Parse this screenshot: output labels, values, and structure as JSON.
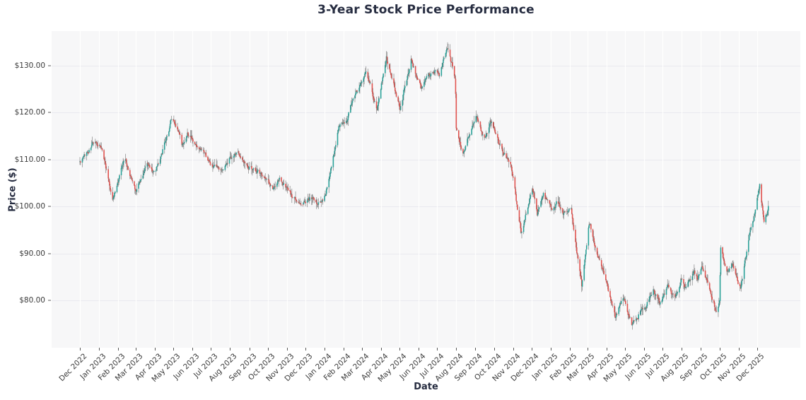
{
  "title": "3-Year Stock Price Performance",
  "chart_data": {
    "type": "candlestick",
    "title": "3-Year Stock Price Performance",
    "xlabel": "Date",
    "ylabel": "Price ($)",
    "ylim": [
      69.9,
      137.4
    ],
    "grid": true,
    "start_date": "2022-12-01",
    "end_date": "2025-12-19",
    "frequency": "daily-business-days",
    "up_color": "#2aa198",
    "down_color": "#e0524e",
    "wick_color": "#4a4a4a",
    "plot_bg": "#f7f7f8",
    "y_ticks": [
      {
        "price": 130,
        "label": "$130.00"
      },
      {
        "price": 120,
        "label": "$120.00"
      },
      {
        "price": 110,
        "label": "$110.00"
      },
      {
        "price": 100,
        "label": "$100.00"
      },
      {
        "price": 90,
        "label": "$90.00"
      },
      {
        "price": 80,
        "label": "$80.00"
      }
    ],
    "x_ticks": [
      "Dec 2022",
      "Jan 2023",
      "Feb 2023",
      "Mar 2023",
      "Apr 2023",
      "May 2023",
      "Jun 2023",
      "Jul 2023",
      "Aug 2023",
      "Sep 2023",
      "Oct 2023",
      "Nov 2023",
      "Dec 2023",
      "Jan 2024",
      "Feb 2024",
      "Mar 2024",
      "Apr 2024",
      "May 2024",
      "Jun 2024",
      "Jul 2024",
      "Aug 2024",
      "Sep 2024",
      "Oct 2024",
      "Nov 2024",
      "Dec 2024",
      "Jan 2025",
      "Feb 2025",
      "Mar 2025",
      "Apr 2025",
      "May 2025",
      "Jun 2025",
      "Jul 2025",
      "Aug 2025",
      "Sep 2025",
      "Oct 2025",
      "Nov 2025",
      "Dec 2025"
    ],
    "price_max_observed": 134.5,
    "price_min_observed": 73.5,
    "trend_anchors": [
      [
        "2022-12-01",
        109.5
      ],
      [
        "2022-12-09",
        110.5
      ],
      [
        "2022-12-22",
        113.6
      ],
      [
        "2023-01-03",
        112.6
      ],
      [
        "2023-01-12",
        108.5
      ],
      [
        "2023-01-23",
        102.2
      ],
      [
        "2023-02-12",
        109.6
      ],
      [
        "2023-03-01",
        103.6
      ],
      [
        "2023-03-20",
        109.4
      ],
      [
        "2023-04-01",
        107.2
      ],
      [
        "2023-04-14",
        112.2
      ],
      [
        "2023-04-28",
        118.2
      ],
      [
        "2023-05-08",
        117.0
      ],
      [
        "2023-05-15",
        113.2
      ],
      [
        "2023-05-24",
        116.4
      ],
      [
        "2023-06-12",
        111.6
      ],
      [
        "2023-07-03",
        108.3
      ],
      [
        "2023-07-17",
        106.6
      ],
      [
        "2023-08-01",
        110.2
      ],
      [
        "2023-08-14",
        111.4
      ],
      [
        "2023-09-01",
        109.2
      ],
      [
        "2023-09-25",
        106.6
      ],
      [
        "2023-10-10",
        103.6
      ],
      [
        "2023-10-20",
        105.4
      ],
      [
        "2023-11-10",
        101.8
      ],
      [
        "2023-11-24",
        100.4
      ],
      [
        "2023-12-08",
        101.6
      ],
      [
        "2023-12-29",
        100.9
      ],
      [
        "2024-01-12",
        108.0
      ],
      [
        "2024-01-24",
        117.6
      ],
      [
        "2024-02-06",
        118.4
      ],
      [
        "2024-02-27",
        126.6
      ],
      [
        "2024-03-08",
        129.6
      ],
      [
        "2024-03-26",
        120.6
      ],
      [
        "2024-04-10",
        131.9
      ],
      [
        "2024-05-02",
        121.6
      ],
      [
        "2024-05-20",
        131.4
      ],
      [
        "2024-06-06",
        125.0
      ],
      [
        "2024-06-24",
        129.0
      ],
      [
        "2024-07-05",
        127.5
      ],
      [
        "2024-07-18",
        133.6
      ],
      [
        "2024-07-30",
        127.2
      ],
      [
        "2024-07-31",
        124.0
      ],
      [
        "2024-08-01",
        116.5
      ],
      [
        "2024-08-12",
        111.8
      ],
      [
        "2024-08-26",
        117.3
      ],
      [
        "2024-09-03",
        119.2
      ],
      [
        "2024-09-16",
        114.3
      ],
      [
        "2024-09-25",
        118.0
      ],
      [
        "2024-10-01",
        116.6
      ],
      [
        "2024-10-14",
        111.8
      ],
      [
        "2024-10-28",
        108.2
      ],
      [
        "2024-11-14",
        95.2
      ],
      [
        "2024-12-02",
        104.3
      ],
      [
        "2024-12-10",
        97.9
      ],
      [
        "2024-12-20",
        102.0
      ],
      [
        "2025-01-02",
        99.2
      ],
      [
        "2025-01-10",
        101.4
      ],
      [
        "2025-01-21",
        98.6
      ],
      [
        "2025-02-03",
        100.4
      ],
      [
        "2025-02-11",
        92.0
      ],
      [
        "2025-02-20",
        83.2
      ],
      [
        "2025-03-04",
        96.8
      ],
      [
        "2025-03-20",
        88.5
      ],
      [
        "2025-04-01",
        84.0
      ],
      [
        "2025-04-15",
        76.2
      ],
      [
        "2025-04-29",
        81.0
      ],
      [
        "2025-05-13",
        74.6
      ],
      [
        "2025-05-23",
        77.4
      ],
      [
        "2025-06-03",
        79.0
      ],
      [
        "2025-06-16",
        82.0
      ],
      [
        "2025-06-26",
        79.6
      ],
      [
        "2025-07-10",
        83.2
      ],
      [
        "2025-07-21",
        80.2
      ],
      [
        "2025-08-01",
        84.2
      ],
      [
        "2025-08-08",
        82.2
      ],
      [
        "2025-08-20",
        86.6
      ],
      [
        "2025-08-26",
        84.8
      ],
      [
        "2025-09-03",
        87.4
      ],
      [
        "2025-09-15",
        82.4
      ],
      [
        "2025-09-26",
        77.9
      ],
      [
        "2025-10-01",
        79.5
      ],
      [
        "2025-10-02",
        84.5
      ],
      [
        "2025-10-03",
        90.5
      ],
      [
        "2025-10-08",
        88.6
      ],
      [
        "2025-10-15",
        86.4
      ],
      [
        "2025-10-22",
        88.2
      ],
      [
        "2025-11-04",
        83.2
      ],
      [
        "2025-11-11",
        88.7
      ],
      [
        "2025-11-18",
        94.2
      ],
      [
        "2025-11-25",
        97.2
      ],
      [
        "2025-12-05",
        105.2
      ],
      [
        "2025-12-12",
        96.6
      ],
      [
        "2025-12-19",
        100.0
      ]
    ]
  }
}
